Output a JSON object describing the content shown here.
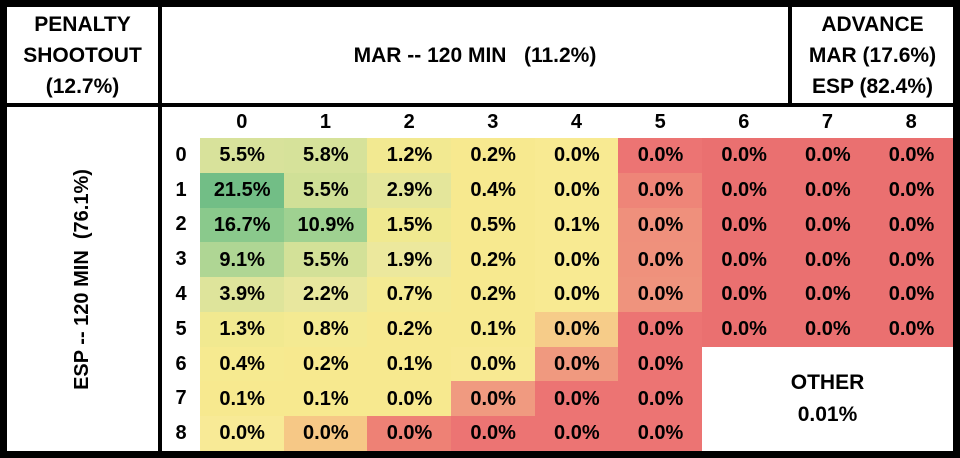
{
  "header": {
    "left": {
      "lines": [
        "PENALTY",
        "SHOOTOUT",
        "(12.7%)"
      ]
    },
    "middle": {
      "title": "MAR -- 120 MIN   (11.2%)"
    },
    "right": {
      "lines": [
        "ADVANCE",
        "MAR (17.6%)",
        "ESP (82.4%)"
      ]
    }
  },
  "left_axis": {
    "label": "ESP -- 120 MIN  (76.1%)"
  },
  "other_box": {
    "label": "OTHER",
    "value": "0.01%"
  },
  "colors": {
    "border": "#000000",
    "background": "#ffffff",
    "scale_green_max": "#72BE86",
    "scale_yellow_mid": "#F7E98F",
    "scale_red_min": "#EA7070"
  },
  "chart_data": {
    "type": "heatmap",
    "x_axis_label": "MAR -- 120 MIN (11.2%)",
    "y_axis_label": "ESP -- 120 MIN (76.1%)",
    "x_ticks": [
      "0",
      "1",
      "2",
      "3",
      "4",
      "5",
      "6",
      "7",
      "8"
    ],
    "y_ticks": [
      "0",
      "1",
      "2",
      "3",
      "4",
      "5",
      "6",
      "7",
      "8"
    ],
    "values": [
      [
        "5.5%",
        "5.8%",
        "1.2%",
        "0.2%",
        "0.0%",
        "0.0%",
        "0.0%",
        "0.0%",
        "0.0%"
      ],
      [
        "21.5%",
        "5.5%",
        "2.9%",
        "0.4%",
        "0.0%",
        "0.0%",
        "0.0%",
        "0.0%",
        "0.0%"
      ],
      [
        "16.7%",
        "10.9%",
        "1.5%",
        "0.5%",
        "0.1%",
        "0.0%",
        "0.0%",
        "0.0%",
        "0.0%"
      ],
      [
        "9.1%",
        "5.5%",
        "1.9%",
        "0.2%",
        "0.0%",
        "0.0%",
        "0.0%",
        "0.0%",
        "0.0%"
      ],
      [
        "3.9%",
        "2.2%",
        "0.7%",
        "0.2%",
        "0.0%",
        "0.0%",
        "0.0%",
        "0.0%",
        "0.0%"
      ],
      [
        "1.3%",
        "0.8%",
        "0.2%",
        "0.1%",
        "0.0%",
        "0.0%",
        "0.0%",
        "0.0%",
        "0.0%"
      ],
      [
        "0.4%",
        "0.2%",
        "0.1%",
        "0.0%",
        "0.0%",
        "0.0%",
        null,
        null,
        null
      ],
      [
        "0.1%",
        "0.1%",
        "0.0%",
        "0.0%",
        "0.0%",
        "0.0%",
        null,
        null,
        null
      ],
      [
        "0.0%",
        "0.0%",
        "0.0%",
        "0.0%",
        "0.0%",
        "0.0%",
        null,
        null,
        null
      ]
    ],
    "cell_colors": [
      [
        "#D8E29B",
        "#D6E29A",
        "#F2E991",
        "#F7E98F",
        "#F8EA92",
        "#EC7473",
        "#EA7070",
        "#EA7070",
        "#EA7070"
      ],
      [
        "#72BE86",
        "#D0E097",
        "#E4E69B",
        "#F7E98F",
        "#F8EA92",
        "#EE8578",
        "#EA7070",
        "#EA7070",
        "#EA7070"
      ],
      [
        "#8AC98C",
        "#9FD191",
        "#F0E990",
        "#F7E98F",
        "#F8EA92",
        "#EF907C",
        "#EA7070",
        "#EA7070",
        "#EA7070"
      ],
      [
        "#AFD694",
        "#D3E198",
        "#ECE89D",
        "#F7E98F",
        "#F8EA92",
        "#EF917C",
        "#EA7070",
        "#EA7070",
        "#EA7070"
      ],
      [
        "#DEE49B",
        "#E8E79E",
        "#F4EA92",
        "#F7E98F",
        "#F8EA92",
        "#EF937D",
        "#EA7070",
        "#EA7070",
        "#EA7070"
      ],
      [
        "#F1E990",
        "#F4EA92",
        "#F7E98F",
        "#F7E98F",
        "#F6CC89",
        "#EC7473",
        "#EA7070",
        "#EA7070",
        "#EA7070"
      ],
      [
        "#F6EA90",
        "#F7E98F",
        "#F7E98F",
        "#F8E992",
        "#F0997F",
        "#EC7473",
        null,
        null,
        null
      ],
      [
        "#F7E98F",
        "#F7E98F",
        "#F7E98F",
        "#F09A80",
        "#EC7473",
        "#EC7473",
        null,
        null,
        null
      ],
      [
        "#F8EA96",
        "#F6C886",
        "#EE8175",
        "#EC7473",
        "#EC7473",
        "#EC7473",
        null,
        null,
        null
      ]
    ],
    "other_region": {
      "label": "OTHER",
      "value": "0.01%",
      "rows": [
        6,
        7,
        8
      ],
      "cols": [
        6,
        7,
        8
      ]
    },
    "summary": {
      "penalty_shootout": "12.7%",
      "mar_win_120min": "11.2%",
      "esp_win_120min": "76.1%",
      "advance_mar": "17.6%",
      "advance_esp": "82.4%",
      "other": "0.01%"
    }
  }
}
